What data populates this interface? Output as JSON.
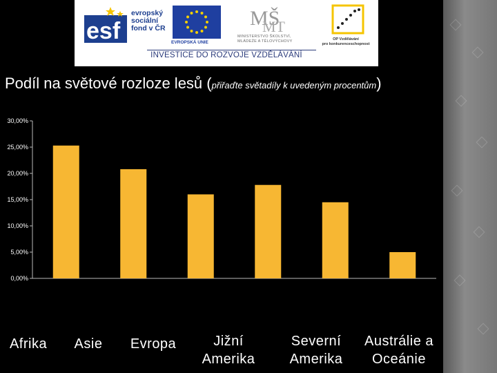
{
  "header": {
    "logos": [
      {
        "name": "esf",
        "text_lines": [
          "evropský",
          "sociální",
          "fond v ČR"
        ]
      },
      {
        "name": "eu-flag",
        "caption": "EVROPSKÁ UNIE"
      },
      {
        "name": "msmt",
        "caption_lines": [
          "MINISTERSTVO ŠKOLSTVÍ,",
          "MLÁDEŽE A TĚLOVÝCHOVY"
        ]
      },
      {
        "name": "op-vk",
        "caption_lines": [
          "OP Vzdělávání",
          "pro konkurenceschopnost"
        ]
      }
    ],
    "tagline": "INVESTICE DO ROZVOJE VZDĚLÁVÁNÍ"
  },
  "slide": {
    "title_main": "Podíl na světové rozloze lesů (",
    "title_hint": "přiřaďte světadíly k uvedeným procentům",
    "title_close": ")"
  },
  "chart_data": {
    "type": "bar",
    "categories": [
      "Afrika",
      "Asie",
      "Evropa",
      "Jižní Amerika",
      "Severní Amerika",
      "Austrálie a Oceánie"
    ],
    "values": [
      25.3,
      20.8,
      16.0,
      17.8,
      14.5,
      5.0
    ],
    "ylim": [
      0,
      30
    ],
    "yticks": [
      "0,00%",
      "5,00%",
      "10,00%",
      "15,00%",
      "20,00%",
      "25,00%",
      "30,00%"
    ],
    "bar_color": "#f7b733",
    "grid": false
  },
  "category_labels": [
    [
      "Afrika"
    ],
    [
      "Asie"
    ],
    [
      "Evropa"
    ],
    [
      "Jižní",
      "Amerika"
    ],
    [
      "Severní",
      "Amerika"
    ],
    [
      "Austrálie a",
      "Oceánie"
    ]
  ],
  "colors": {
    "background": "#000000",
    "bar": "#f7b733",
    "text": "#ffffff"
  }
}
